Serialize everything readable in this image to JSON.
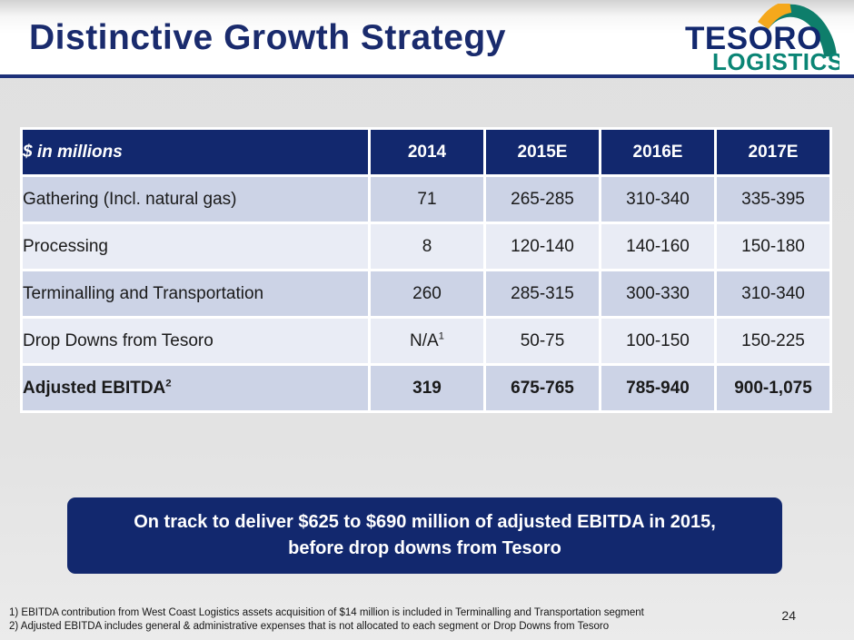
{
  "slide": {
    "title": "Distinctive Growth Strategy",
    "page_number": "24"
  },
  "logo": {
    "line1": "TESORO",
    "line2": "LOGISTICS"
  },
  "colors": {
    "navy": "#12286E",
    "teal_text": "#0A8575",
    "arc_teal": "#0E7E6B",
    "arc_gold": "#F5A81C",
    "row_dark": "#CCD3E6",
    "row_light": "#E9ECF5"
  },
  "table": {
    "unit_label": "$ in millions",
    "columns": [
      "2014",
      "2015E",
      "2016E",
      "2017E"
    ],
    "rows": [
      {
        "label": "Gathering (Incl. natural gas)",
        "values": [
          "71",
          "265-285",
          "310-340",
          "335-395"
        ],
        "bold": false
      },
      {
        "label": "Processing",
        "values": [
          "8",
          "120-140",
          "140-160",
          "150-180"
        ],
        "bold": false
      },
      {
        "label": "Terminalling and Transportation",
        "values": [
          "260",
          "285-315",
          "300-330",
          "310-340"
        ],
        "bold": false
      },
      {
        "label": "Drop Downs from Tesoro",
        "values": [
          "N/A^1",
          "50-75",
          "100-150",
          "150-225"
        ],
        "bold": false
      },
      {
        "label": "Adjusted EBITDA^2",
        "values": [
          "319",
          "675-765",
          "785-940",
          "900-1,075"
        ],
        "bold": true
      }
    ]
  },
  "callout": {
    "line1": "On track to deliver $625 to $690 million of adjusted EBITDA in 2015,",
    "line2": "before drop downs from Tesoro"
  },
  "footnotes": [
    "1) EBITDA contribution from West Coast Logistics assets acquisition of $14 million is included in Terminalling and Transportation segment",
    "2) Adjusted EBITDA includes general & administrative expenses that is not allocated to each segment or Drop Downs from Tesoro"
  ]
}
